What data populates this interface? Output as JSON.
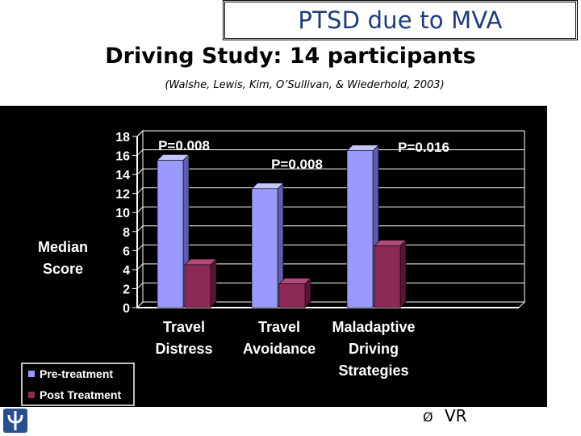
{
  "slide": {
    "title": "PTSD due to MVA",
    "subtitle": "Driving Study:  14 participants",
    "citation": "(Walshe, Lewis, Kim, O’Sullivan, & Wiederhold, 2003)",
    "bullet_marker": "Ø",
    "bullet_text": "VR"
  },
  "chart_data": {
    "type": "bar",
    "ylabel": [
      "Median",
      "Score"
    ],
    "ylim": [
      0,
      18
    ],
    "yticks": [
      "0",
      "2",
      "4",
      "6",
      "8",
      "10",
      "12",
      "14",
      "16",
      "18"
    ],
    "categories": [
      [
        "Travel",
        "Distress"
      ],
      [
        "Travel",
        "Avoidance"
      ],
      [
        "Maladaptive",
        "Driving",
        "Strategies"
      ]
    ],
    "series": [
      {
        "name": "Pre-treatment",
        "values": [
          15.5,
          12.5,
          16.5
        ],
        "color": "#9a9afc"
      },
      {
        "name": "Post Treatment",
        "values": [
          4.5,
          2.5,
          6.5
        ],
        "color": "#8c2a55"
      }
    ],
    "annotations": [
      "P=0.008",
      "P=0.008",
      "P=0.016"
    ],
    "grid": true,
    "legend_position": "bottom-left",
    "background": "#000000",
    "text_color": "#ffffff"
  }
}
